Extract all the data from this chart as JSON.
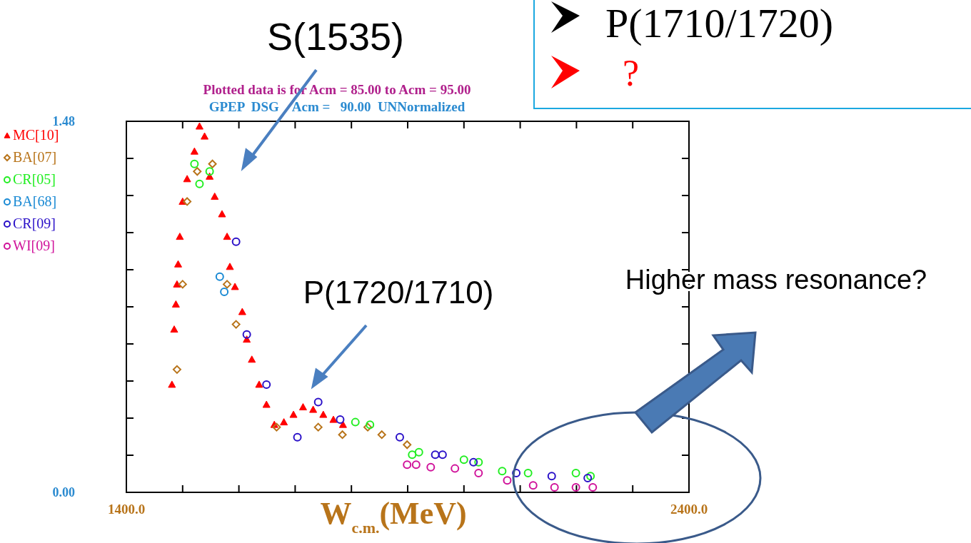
{
  "chart_data": {
    "type": "scatter",
    "title": "Plotted data is for Acm =  85.00 to Acm =  95.00",
    "subtitle": "GPEP  DSG    Acm =   90.00  UNNormalized",
    "xlabel": "W$_{c.m.}$(MeV)",
    "xlim": [
      1400,
      2400
    ],
    "xticks": [
      {
        "value": 1400,
        "label": "1400.0"
      },
      {
        "value": 1500,
        "label": null
      },
      {
        "value": 1600,
        "label": null
      },
      {
        "value": 1700,
        "label": null
      },
      {
        "value": 1800,
        "label": null
      },
      {
        "value": 1900,
        "label": null
      },
      {
        "value": 2000,
        "label": null
      },
      {
        "value": 2100,
        "label": null
      },
      {
        "value": 2200,
        "label": null
      },
      {
        "value": 2300,
        "label": null
      },
      {
        "value": 2400,
        "label": "2400.0"
      }
    ],
    "ylim": [
      0,
      1.48
    ],
    "yticks": [
      {
        "value": 0,
        "label": "0.00"
      },
      {
        "value": 0.148,
        "label": null
      },
      {
        "value": 0.296,
        "label": null
      },
      {
        "value": 0.444,
        "label": null
      },
      {
        "value": 0.592,
        "label": null
      },
      {
        "value": 0.74,
        "label": null
      },
      {
        "value": 0.888,
        "label": null
      },
      {
        "value": 1.036,
        "label": null
      },
      {
        "value": 1.184,
        "label": null
      },
      {
        "value": 1.332,
        "label": null
      },
      1.48
    ],
    "legend": "left",
    "grid": false,
    "series": [
      {
        "name": "MC[10]",
        "color": "#ff0000",
        "marker": "triangle",
        "x": [
          1481,
          1485,
          1488,
          1490,
          1492,
          1495,
          1500,
          1508,
          1521,
          1530,
          1539,
          1548,
          1557,
          1570,
          1579,
          1584,
          1593,
          1606,
          1614,
          1623,
          1636,
          1649,
          1663,
          1680,
          1697,
          1714,
          1732,
          1750,
          1768,
          1785
        ],
        "values": [
          0.43,
          0.65,
          0.75,
          0.83,
          0.91,
          1.02,
          1.16,
          1.25,
          1.36,
          1.46,
          1.42,
          1.26,
          1.18,
          1.11,
          1.02,
          0.9,
          0.82,
          0.72,
          0.61,
          0.53,
          0.43,
          0.35,
          0.27,
          0.28,
          0.31,
          0.34,
          0.33,
          0.31,
          0.29,
          0.27
        ]
      },
      {
        "name": "BA[07]",
        "color": "#b8741a",
        "marker": "diamond",
        "x": [
          1490,
          1500,
          1508,
          1526,
          1553,
          1579,
          1595,
          1667,
          1741,
          1784,
          1829,
          1854,
          1899
        ],
        "values": [
          0.49,
          0.83,
          1.16,
          1.28,
          1.31,
          0.83,
          0.67,
          0.26,
          0.26,
          0.23,
          0.26,
          0.23,
          0.19
        ]
      },
      {
        "name": "CR[05]",
        "color": "#22ee22",
        "marker": "circle",
        "x": [
          1521,
          1530,
          1548,
          1807,
          1833,
          1908,
          1920,
          2000,
          2026,
          2068,
          2114,
          2199,
          2225
        ],
        "values": [
          1.31,
          1.23,
          1.28,
          0.28,
          0.27,
          0.15,
          0.16,
          0.13,
          0.12,
          0.085,
          0.077,
          0.077,
          0.065
        ]
      },
      {
        "name": "BA[68]",
        "color": "#1a8ad4",
        "marker": "circle",
        "x": [
          1566,
          1574
        ],
        "values": [
          0.86,
          0.8
        ]
      },
      {
        "name": "CR[09]",
        "color": "#2a10c8",
        "marker": "circle",
        "x": [
          1595,
          1614,
          1649,
          1704,
          1741,
          1780,
          1886,
          1949,
          1962,
          2017,
          2093,
          2156,
          2220
        ],
        "values": [
          1.0,
          0.63,
          0.43,
          0.22,
          0.36,
          0.29,
          0.22,
          0.15,
          0.15,
          0.12,
          0.077,
          0.065,
          0.057
        ]
      },
      {
        "name": "WI[09]",
        "color": "#d0129a",
        "marker": "circle",
        "x": [
          1899,
          1915,
          1941,
          1984,
          2026,
          2077,
          2123,
          2161,
          2199,
          2229
        ],
        "values": [
          0.11,
          0.11,
          0.1,
          0.095,
          0.077,
          0.048,
          0.028,
          0.02,
          0.02,
          0.02
        ]
      }
    ],
    "annotations": [
      "S(1535)",
      "P(1720/1710)",
      "Higher mass resonance?",
      "P(1710/1720)",
      "?"
    ]
  }
}
